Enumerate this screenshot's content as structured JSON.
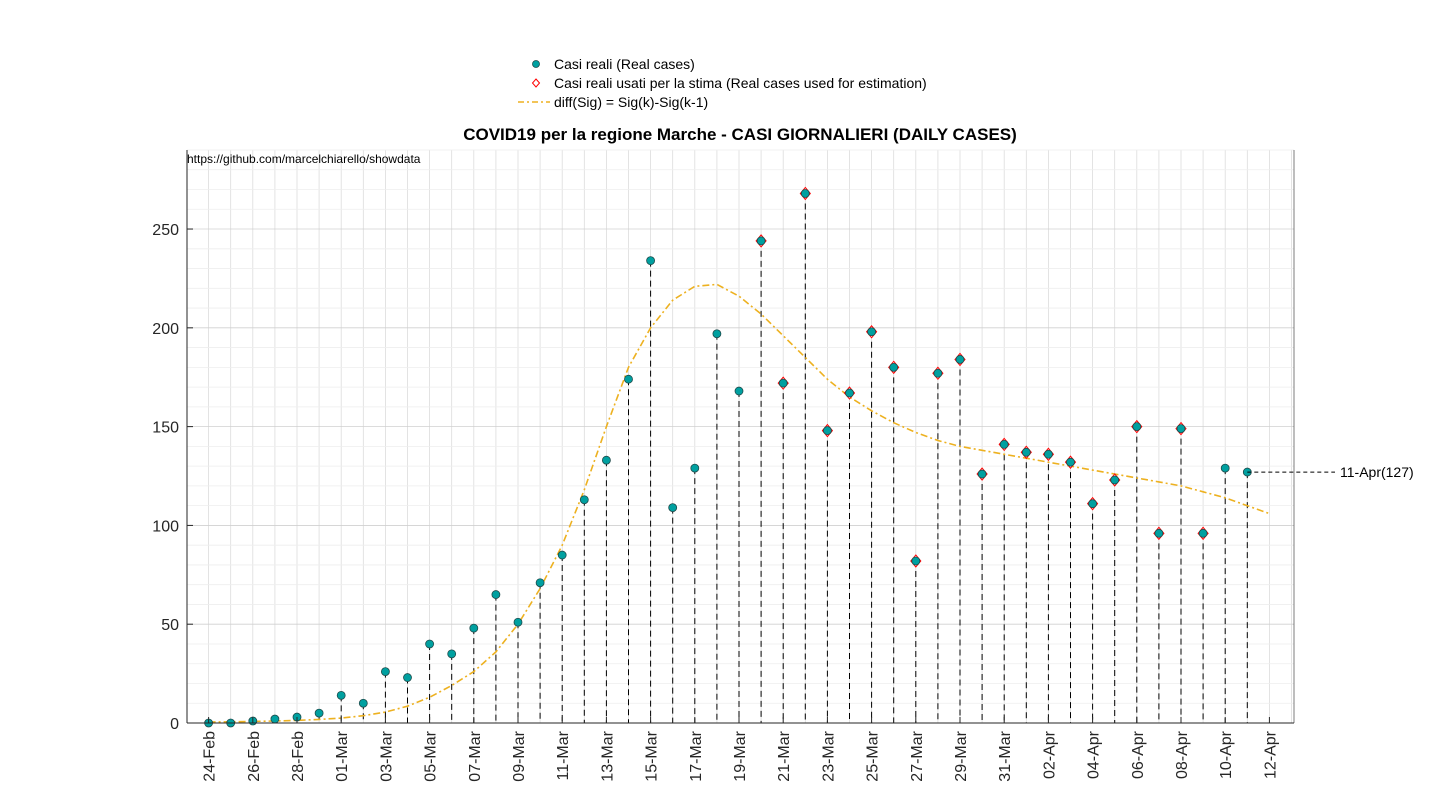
{
  "chart_data": {
    "type": "scatter",
    "title": "COVID19 per la regione Marche - CASI GIORNALIERI (DAILY CASES)",
    "source_text": "https://github.com/marcelchiarello/showdata",
    "xlabel": "",
    "ylabel": "",
    "ylim": [
      0,
      290
    ],
    "xlim": [
      "24-Feb",
      "13-Apr"
    ],
    "grid": true,
    "legend_position": "top-center",
    "x_tick_labels": [
      "24-Feb",
      "26-Feb",
      "28-Feb",
      "01-Mar",
      "03-Mar",
      "05-Mar",
      "07-Mar",
      "09-Mar",
      "11-Mar",
      "13-Mar",
      "15-Mar",
      "17-Mar",
      "19-Mar",
      "21-Mar",
      "23-Mar",
      "25-Mar",
      "27-Mar",
      "29-Mar",
      "31-Mar",
      "02-Apr",
      "04-Apr",
      "06-Apr",
      "08-Apr",
      "10-Apr",
      "12-Apr"
    ],
    "y_ticks": [
      0,
      50,
      100,
      150,
      200,
      250
    ],
    "dates": [
      "24-Feb",
      "25-Feb",
      "26-Feb",
      "27-Feb",
      "28-Feb",
      "29-Feb",
      "01-Mar",
      "02-Mar",
      "03-Mar",
      "04-Mar",
      "05-Mar",
      "06-Mar",
      "07-Mar",
      "08-Mar",
      "09-Mar",
      "10-Mar",
      "11-Mar",
      "12-Mar",
      "13-Mar",
      "14-Mar",
      "15-Mar",
      "16-Mar",
      "17-Mar",
      "18-Mar",
      "19-Mar",
      "20-Mar",
      "21-Mar",
      "22-Mar",
      "23-Mar",
      "24-Mar",
      "25-Mar",
      "26-Mar",
      "27-Mar",
      "28-Mar",
      "29-Mar",
      "30-Mar",
      "31-Mar",
      "01-Apr",
      "02-Apr",
      "03-Apr",
      "04-Apr",
      "05-Apr",
      "06-Apr",
      "07-Apr",
      "08-Apr",
      "09-Apr",
      "10-Apr",
      "11-Apr"
    ],
    "series": [
      {
        "name": "Casi reali (Real cases)",
        "marker": "circle",
        "color": "#00a0a0",
        "values": [
          0,
          0,
          1,
          2,
          3,
          5,
          14,
          10,
          26,
          23,
          40,
          35,
          48,
          65,
          51,
          71,
          85,
          113,
          133,
          174,
          234,
          109,
          129,
          197,
          168,
          244,
          172,
          268,
          148,
          167,
          198,
          180,
          82,
          177,
          184,
          126,
          141,
          137,
          136,
          132,
          111,
          123,
          150,
          96,
          149,
          96,
          129,
          127
        ]
      },
      {
        "name": "Casi reali usati per la stima (Real cases used for estimation)",
        "marker": "diamond",
        "color": "#ff0000",
        "x": [
          "20-Mar",
          "21-Mar",
          "22-Mar",
          "23-Mar",
          "24-Mar",
          "25-Mar",
          "26-Mar",
          "27-Mar",
          "28-Mar",
          "29-Mar",
          "30-Mar",
          "31-Mar",
          "01-Apr",
          "02-Apr",
          "03-Apr",
          "04-Apr",
          "05-Apr",
          "06-Apr",
          "07-Apr",
          "08-Apr",
          "09-Apr"
        ],
        "values": [
          244,
          172,
          268,
          148,
          167,
          198,
          180,
          82,
          177,
          184,
          126,
          141,
          137,
          136,
          132,
          111,
          123,
          150,
          96,
          149,
          96
        ]
      },
      {
        "name": "diff(Sig) = Sig(k)-Sig(k-1)",
        "line_style": "dash-dot",
        "color": "#edb120",
        "x": [
          "24-Feb",
          "25-Feb",
          "26-Feb",
          "27-Feb",
          "28-Feb",
          "29-Feb",
          "01-Mar",
          "02-Mar",
          "03-Mar",
          "04-Mar",
          "05-Mar",
          "06-Mar",
          "07-Mar",
          "08-Mar",
          "09-Mar",
          "10-Mar",
          "11-Mar",
          "12-Mar",
          "13-Mar",
          "14-Mar",
          "15-Mar",
          "16-Mar",
          "17-Mar",
          "18-Mar",
          "19-Mar",
          "20-Mar",
          "21-Mar",
          "22-Mar",
          "23-Mar",
          "24-Mar",
          "25-Mar",
          "26-Mar",
          "27-Mar",
          "28-Mar",
          "29-Mar",
          "30-Mar",
          "31-Mar",
          "01-Apr",
          "02-Apr",
          "03-Apr",
          "04-Apr",
          "05-Apr",
          "06-Apr",
          "07-Apr",
          "08-Apr",
          "09-Apr",
          "10-Apr",
          "11-Apr",
          "12-Apr"
        ],
        "values": [
          0.5,
          0.6,
          0.8,
          1,
          1.3,
          1.8,
          2.5,
          3.7,
          5.5,
          8.5,
          13,
          19,
          26,
          36,
          50,
          68,
          90,
          118,
          150,
          180,
          200,
          214,
          221,
          222,
          216,
          207,
          196,
          185,
          174,
          165,
          158,
          152,
          147,
          143,
          140,
          138,
          136,
          134,
          132,
          130,
          128,
          126,
          124,
          122,
          120,
          117,
          114,
          110,
          106
        ]
      }
    ],
    "annotation": {
      "x": "11-Apr",
      "value": 127,
      "text": "11-Apr(127)"
    }
  }
}
